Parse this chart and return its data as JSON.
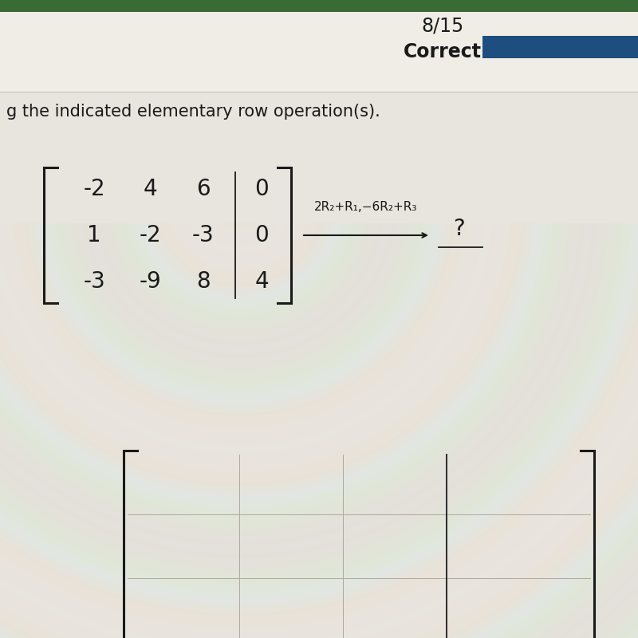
{
  "title_text": "8/15",
  "subtitle_text": "Correct",
  "instruction_text": "g the indicated elementary row operation(s).",
  "matrix": [
    [
      "-2",
      "4",
      "6",
      "0"
    ],
    [
      "1",
      "-2",
      "-3",
      "0"
    ],
    [
      "-3",
      "-9",
      "8",
      "4"
    ]
  ],
  "operation_text": "2R₂+R₁,−6R₂+R₃",
  "question_mark": "?",
  "bg_top_color": "#dedad4",
  "bg_main_color": "#e8e4de",
  "header_bg": "#d5d0ca",
  "dark_bar_color": "#1e4d80",
  "green_bar_color": "#3a6b35",
  "text_color": "#1a1a1a",
  "title_fontsize": 17,
  "instruction_fontsize": 15,
  "matrix_fontsize": 20,
  "operation_fontsize": 11,
  "bracket_lw": 2.2
}
